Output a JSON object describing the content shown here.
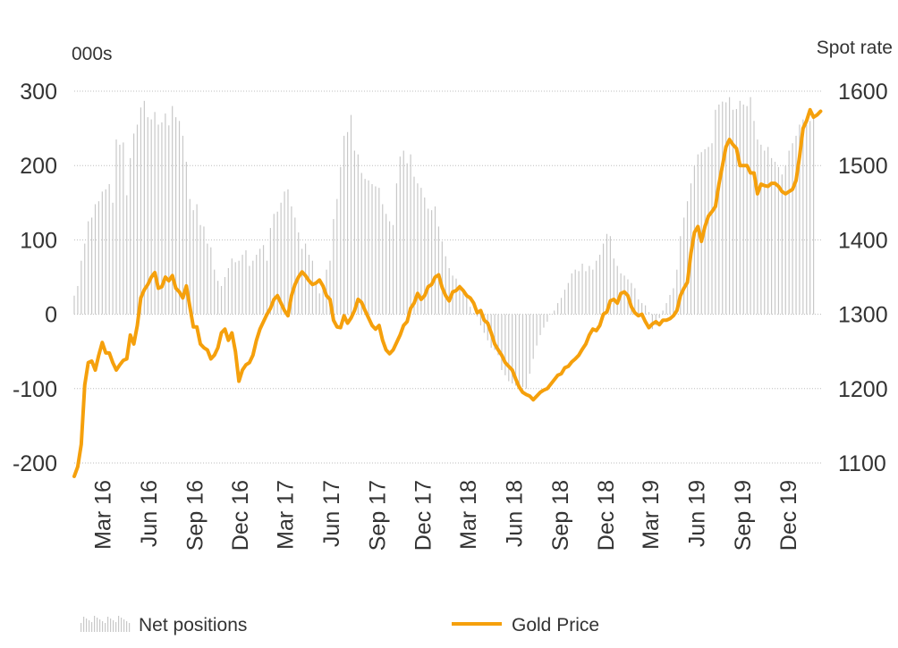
{
  "chart_data": {
    "type": "bar+line",
    "title": "",
    "left_axis": {
      "unit_label": "000s",
      "ylim": [
        -200,
        300
      ],
      "ticks": [
        -200,
        -100,
        0,
        100,
        200,
        300
      ],
      "tick_labels": [
        "-200",
        "-100",
        "0",
        "100",
        "200",
        "300"
      ]
    },
    "right_axis": {
      "unit_label": "Spot rate",
      "ylim": [
        1100,
        1600
      ],
      "ticks": [
        1100,
        1200,
        1300,
        1400,
        1500,
        1600
      ],
      "tick_labels": [
        "1100",
        "1200",
        "1300",
        "1400",
        "1500",
        "1600"
      ]
    },
    "x_axis": {
      "start": "2016-01-05",
      "end": "2020-02-05",
      "tick_labels": [
        {
          "label": "Mar 16",
          "date": "2016-03-01"
        },
        {
          "label": "Jun 16",
          "date": "2016-06-01"
        },
        {
          "label": "Sep 16",
          "date": "2016-09-01"
        },
        {
          "label": "Dec 16",
          "date": "2016-12-01"
        },
        {
          "label": "Mar 17",
          "date": "2017-03-01"
        },
        {
          "label": "Jun 17",
          "date": "2017-06-01"
        },
        {
          "label": "Sep 17",
          "date": "2017-09-01"
        },
        {
          "label": "Dec 17",
          "date": "2017-12-01"
        },
        {
          "label": "Mar 18",
          "date": "2018-03-01"
        },
        {
          "label": "Jun 18",
          "date": "2018-06-01"
        },
        {
          "label": "Sep 18",
          "date": "2018-09-01"
        },
        {
          "label": "Dec 18",
          "date": "2018-12-01"
        },
        {
          "label": "Mar 19",
          "date": "2019-03-01"
        },
        {
          "label": "Jun 19",
          "date": "2019-06-01"
        },
        {
          "label": "Sep 19",
          "date": "2019-09-01"
        },
        {
          "label": "Dec 19",
          "date": "2019-12-01"
        }
      ]
    },
    "grid": "horizontal dotted",
    "legend_position": "bottom",
    "series": [
      {
        "name": "Net positions",
        "type": "bar",
        "axis": "left",
        "color": "#c8c8c8",
        "sampling": "weekly from 2016-01-05",
        "values": [
          25,
          38,
          72,
          95,
          125,
          130,
          148,
          152,
          165,
          168,
          175,
          150,
          235,
          228,
          231,
          160,
          210,
          243,
          255,
          278,
          287,
          265,
          262,
          272,
          255,
          258,
          270,
          254,
          280,
          265,
          260,
          240,
          205,
          155,
          140,
          148,
          120,
          118,
          95,
          90,
          60,
          45,
          38,
          50,
          62,
          75,
          70,
          72,
          80,
          86,
          65,
          72,
          80,
          88,
          93,
          72,
          116,
          135,
          138,
          150,
          165,
          168,
          145,
          130,
          110,
          88,
          95,
          80,
          72,
          40,
          28,
          38,
          60,
          72,
          128,
          155,
          198,
          240,
          245,
          268,
          220,
          215,
          190,
          182,
          180,
          175,
          172,
          170,
          148,
          135,
          125,
          120,
          176,
          212,
          220,
          203,
          215,
          185,
          176,
          170,
          157,
          142,
          140,
          145,
          118,
          98,
          78,
          62,
          52,
          48,
          40,
          34,
          25,
          10,
          2,
          -3,
          -15,
          -25,
          -35,
          -45,
          -48,
          -55,
          -75,
          -82,
          -90,
          -93,
          -96,
          -95,
          -98,
          -100,
          -80,
          -60,
          -42,
          -28,
          -18,
          -10,
          0,
          5,
          15,
          22,
          33,
          42,
          55,
          60,
          58,
          68,
          58,
          65,
          60,
          72,
          80,
          95,
          108,
          105,
          75,
          65,
          55,
          52,
          47,
          42,
          35,
          20,
          15,
          12,
          3,
          -20,
          -15,
          -5,
          5,
          15,
          26,
          35,
          60,
          105,
          130,
          152,
          176,
          200,
          215,
          218,
          222,
          225,
          230,
          275,
          282,
          286,
          285,
          292,
          275,
          276,
          287,
          282,
          280,
          292,
          260,
          235,
          228,
          220,
          225,
          210,
          205,
          198,
          188,
          200,
          220,
          230,
          240,
          255,
          262,
          255,
          260,
          265
        ]
      },
      {
        "name": "Gold Price",
        "type": "line",
        "axis": "right",
        "color": "#f5a00c",
        "sampling": "weekly from 2016-01-05",
        "values": [
          1082,
          1095,
          1125,
          1205,
          1235,
          1237,
          1225,
          1245,
          1262,
          1248,
          1248,
          1235,
          1225,
          1232,
          1238,
          1240,
          1272,
          1260,
          1285,
          1322,
          1333,
          1340,
          1350,
          1356,
          1335,
          1337,
          1350,
          1345,
          1352,
          1335,
          1330,
          1322,
          1338,
          1310,
          1283,
          1283,
          1260,
          1255,
          1252,
          1240,
          1245,
          1255,
          1275,
          1280,
          1265,
          1275,
          1250,
          1210,
          1225,
          1232,
          1235,
          1245,
          1265,
          1280,
          1290,
          1300,
          1308,
          1320,
          1325,
          1315,
          1305,
          1298,
          1325,
          1340,
          1350,
          1357,
          1352,
          1345,
          1340,
          1342,
          1346,
          1338,
          1325,
          1320,
          1292,
          1283,
          1282,
          1298,
          1288,
          1295,
          1305,
          1320,
          1316,
          1305,
          1295,
          1285,
          1280,
          1285,
          1265,
          1252,
          1247,
          1252,
          1262,
          1272,
          1285,
          1290,
          1308,
          1315,
          1328,
          1320,
          1325,
          1337,
          1340,
          1350,
          1353,
          1336,
          1325,
          1318,
          1330,
          1332,
          1337,
          1332,
          1325,
          1322,
          1315,
          1302,
          1305,
          1292,
          1288,
          1275,
          1260,
          1252,
          1245,
          1235,
          1230,
          1225,
          1213,
          1202,
          1195,
          1192,
          1190,
          1185,
          1190,
          1195,
          1198,
          1200,
          1206,
          1212,
          1218,
          1220,
          1228,
          1230,
          1236,
          1240,
          1245,
          1253,
          1260,
          1272,
          1280,
          1278,
          1285,
          1300,
          1303,
          1318,
          1320,
          1315,
          1328,
          1330,
          1325,
          1310,
          1302,
          1298,
          1300,
          1290,
          1282,
          1287,
          1290,
          1286,
          1292,
          1292,
          1294,
          1298,
          1305,
          1325,
          1335,
          1343,
          1382,
          1410,
          1418,
          1398,
          1418,
          1432,
          1438,
          1445,
          1475,
          1500,
          1525,
          1535,
          1528,
          1523,
          1500,
          1500,
          1500,
          1490,
          1490,
          1462,
          1475,
          1473,
          1472,
          1476,
          1476,
          1472,
          1465,
          1462,
          1465,
          1468,
          1480,
          1512,
          1550,
          1560,
          1575,
          1565,
          1568,
          1573
        ]
      }
    ]
  }
}
